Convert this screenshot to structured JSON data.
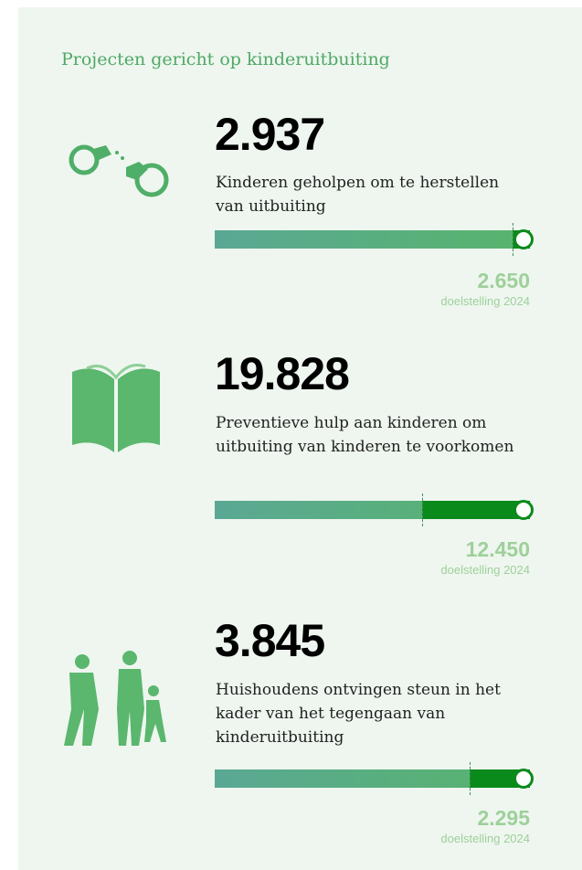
{
  "header": {
    "title": "Projecten gericht op kinderuitbuiting"
  },
  "items": [
    {
      "value": "2.937",
      "description": "Kinderen geholpen om te herstellen van uitbuiting",
      "target": "2.650",
      "target_label": "doelstelling 2024"
    },
    {
      "value": "19.828",
      "description": "Preventieve hulp aan kinderen om uitbuiting van kinderen te voorkomen",
      "target": "12.450",
      "target_label": "doelstelling 2024"
    },
    {
      "value": "3.845",
      "description": "Huishoudens ontvingen steun in het kader van het tegengaan van kinderuitbuiting",
      "target": "2.295",
      "target_label": "doelstelling 2024"
    }
  ]
}
